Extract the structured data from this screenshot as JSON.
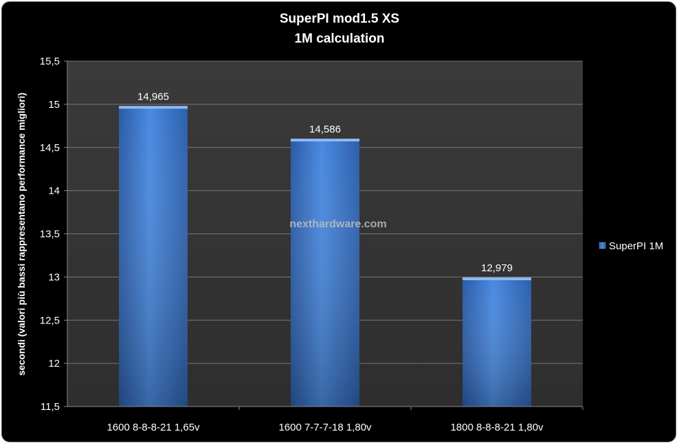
{
  "chart_data": {
    "type": "bar",
    "title": "SuperPI mod1.5 XS",
    "subtitle": "1M calculation",
    "ylabel": "secondi  (valori più bassi rappresentano performance migliori)",
    "xlabel": "",
    "categories": [
      "1600 8-8-8-21 1,65v",
      "1600 7-7-7-18 1,80v",
      "1800 8-8-8-21 1,80v"
    ],
    "series": [
      {
        "name": "SuperPI 1M",
        "values": [
          14.965,
          14.586,
          12.979
        ],
        "color": "#3f7fd6"
      }
    ],
    "data_labels": [
      "14,965",
      "14,586",
      "12,979"
    ],
    "ylim": [
      11.5,
      15.5
    ],
    "yticks": [
      "11,5",
      "12",
      "12,5",
      "13",
      "13,5",
      "14",
      "14,5",
      "15",
      "15,5"
    ],
    "grid": true,
    "legend_position": "right",
    "watermark": "nexthardware.com"
  }
}
